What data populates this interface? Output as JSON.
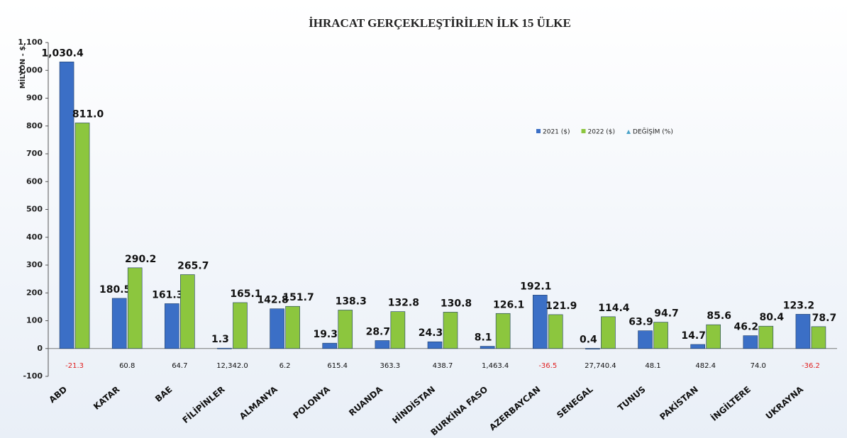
{
  "chart_data": {
    "type": "bar",
    "title": "İHRACAT GERÇEKLEŞTİRİLEN İLK 15 ÜLKE",
    "y_label": "MİLYON - $",
    "categories": [
      "ABD",
      "KATAR",
      "BAE",
      "FİLİPİNLER",
      "ALMANYA",
      "POLONYA",
      "RUANDA",
      "HİNDİSTAN",
      "BURKİNA FASO",
      "AZERBAYCAN",
      "SENEGAL",
      "TUNUS",
      "PAKİSTAN",
      "İNGİLTERE",
      "UKRAYNA"
    ],
    "series": [
      {
        "name": "2021 ($)",
        "color": "#3b6fc6",
        "values": [
          1030.4,
          180.5,
          161.3,
          1.3,
          142.8,
          19.3,
          28.7,
          24.3,
          8.1,
          192.1,
          0.4,
          63.9,
          14.7,
          46.2,
          123.2
        ],
        "value_labels": [
          "1,030.4",
          "180.5",
          "161.3",
          "1.3",
          "142.8",
          "19.3",
          "28.7",
          "24.3",
          "8.1",
          "192.1",
          "0.4",
          "63.9",
          "14.7",
          "46.2",
          "123.2"
        ]
      },
      {
        "name": "2022 ($)",
        "color": "#8cc63e",
        "values": [
          811.0,
          290.2,
          265.7,
          165.1,
          151.7,
          138.3,
          132.8,
          130.8,
          126.1,
          121.9,
          114.4,
          94.7,
          85.6,
          80.4,
          78.7
        ],
        "value_labels": [
          "811.0",
          "290.2",
          "265.7",
          "165.1",
          "151.7",
          "138.3",
          "132.8",
          "130.8",
          "126.1",
          "121.9",
          "114.4",
          "94.7",
          "85.6",
          "80.4",
          "78.7"
        ]
      },
      {
        "name": "DEĞİŞİM (%)",
        "color": "#4aa3c8",
        "values": [
          -21.3,
          60.8,
          64.7,
          12342.0,
          6.2,
          615.4,
          363.3,
          438.7,
          1463.4,
          -36.5,
          27740.4,
          48.1,
          482.4,
          74.0,
          -36.2
        ],
        "value_labels": [
          "-21.3",
          "60.8",
          "64.7",
          "12,342.0",
          "6.2",
          "615.4",
          "363.3",
          "438.7",
          "1,463.4",
          "-36.5",
          "27,740.4",
          "48.1",
          "482.4",
          "74.0",
          "-36.2"
        ]
      }
    ],
    "ylim": [
      -100,
      1100
    ],
    "yticks": [
      -100,
      0,
      100,
      200,
      300,
      400,
      500,
      600,
      700,
      800,
      900,
      {
        "value": 1000,
        "label": "1,000"
      },
      {
        "value": 1100,
        "label": "1,100"
      }
    ],
    "grid": false
  }
}
